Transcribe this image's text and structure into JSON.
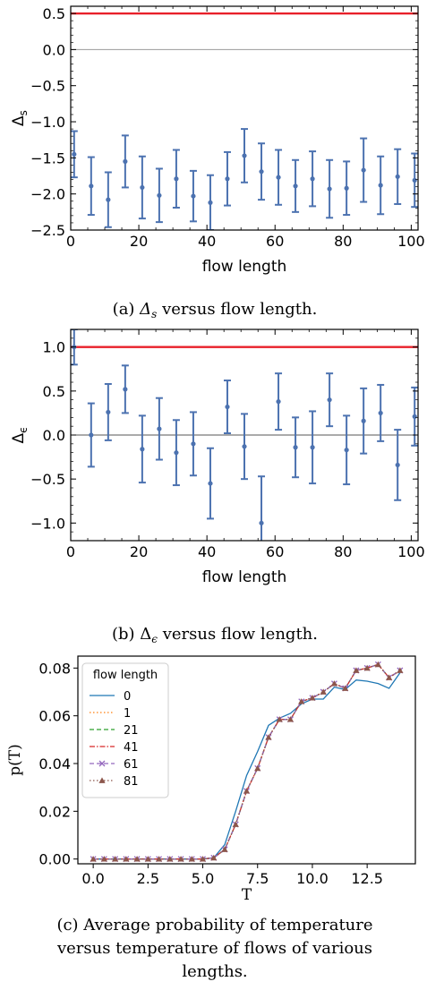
{
  "captions": {
    "a": "(a) Δ_s versus flow length.",
    "b": "(b) Δ_ε versus flow length.",
    "c_lines": [
      "(c) Average probability of temperature",
      "versus temperature of flows of various",
      "lengths."
    ]
  },
  "chart_data": [
    {
      "id": "a",
      "type": "scatter",
      "xlabel": "flow length",
      "ylabel": "Δ_s",
      "xlim": [
        0,
        102
      ],
      "ylim": [
        -2.5,
        0.6
      ],
      "xticks": [
        0,
        20,
        40,
        60,
        80,
        100
      ],
      "yticks": [
        0.5,
        0.0,
        -0.5,
        -1.0,
        -1.5,
        -2.0,
        -2.5
      ],
      "ytick_labels": [
        "0.5",
        "0.0",
        "−0.5",
        "−1.0",
        "−1.5",
        "−2.0",
        "−2.5"
      ],
      "reference_lines": [
        {
          "y": 0.5,
          "color": "#e8202a"
        },
        {
          "y": 0.0,
          "color": "#999999"
        }
      ],
      "series": [
        {
          "color": "#4c72b0",
          "x": [
            1,
            6,
            11,
            16,
            21,
            26,
            31,
            36,
            41,
            46,
            51,
            56,
            61,
            66,
            71,
            76,
            81,
            86,
            91,
            96,
            101
          ],
          "y": [
            -1.45,
            -1.89,
            -2.08,
            -1.55,
            -1.91,
            -2.02,
            -1.79,
            -2.03,
            -2.12,
            -1.79,
            -1.47,
            -1.69,
            -1.77,
            -1.89,
            -1.79,
            -1.93,
            -1.92,
            -1.67,
            -1.88,
            -1.76,
            -1.81
          ],
          "err": [
            0.32,
            0.4,
            0.38,
            0.36,
            0.43,
            0.37,
            0.4,
            0.35,
            0.38,
            0.37,
            0.37,
            0.39,
            0.38,
            0.36,
            0.38,
            0.4,
            0.37,
            0.44,
            0.4,
            0.38,
            0.37
          ]
        }
      ]
    },
    {
      "id": "b",
      "type": "scatter",
      "xlabel": "flow length",
      "ylabel": "Δ_ε",
      "xlim": [
        0,
        102
      ],
      "ylim": [
        -1.2,
        1.2
      ],
      "xticks": [
        0,
        20,
        40,
        60,
        80,
        100
      ],
      "yticks": [
        1.0,
        0.5,
        0.0,
        -0.5,
        -1.0
      ],
      "ytick_labels": [
        "1.0",
        "0.5",
        "0.0",
        "−0.5",
        "−1.0"
      ],
      "reference_lines": [
        {
          "y": 1.0,
          "color": "#e8202a"
        },
        {
          "y": 0.0,
          "color": "#555555"
        }
      ],
      "series": [
        {
          "color": "#4c72b0",
          "x": [
            1,
            6,
            11,
            16,
            21,
            26,
            31,
            36,
            41,
            46,
            51,
            56,
            61,
            66,
            71,
            76,
            81,
            86,
            91,
            96,
            101
          ],
          "y": [
            1.0,
            0.0,
            0.26,
            0.52,
            -0.16,
            0.07,
            -0.2,
            -0.1,
            -0.55,
            0.32,
            -0.13,
            -1.0,
            0.38,
            -0.14,
            -0.14,
            0.4,
            -0.17,
            0.16,
            0.25,
            -0.34,
            0.21
          ],
          "err": [
            0.2,
            0.36,
            0.32,
            0.27,
            0.38,
            0.35,
            0.37,
            0.36,
            0.4,
            0.3,
            0.37,
            0.53,
            0.32,
            0.34,
            0.41,
            0.3,
            0.39,
            0.37,
            0.32,
            0.4,
            0.33
          ]
        }
      ]
    },
    {
      "id": "c",
      "type": "line",
      "xlabel": "T",
      "ylabel": "p(T)",
      "xlim": [
        -0.7,
        14.7
      ],
      "ylim": [
        -0.002,
        0.085
      ],
      "xticks": [
        0.0,
        2.5,
        5.0,
        7.5,
        10.0,
        12.5
      ],
      "xtick_labels": [
        "0.0",
        "2.5",
        "5.0",
        "7.5",
        "10.0",
        "12.5"
      ],
      "yticks": [
        0.0,
        0.02,
        0.04,
        0.06,
        0.08
      ],
      "ytick_labels": [
        "0.00",
        "0.02",
        "0.04",
        "0.06",
        "0.08"
      ],
      "legend": {
        "title": "flow length",
        "position": "top-left"
      },
      "x": [
        0,
        0.5,
        1,
        1.5,
        2,
        2.5,
        3,
        3.5,
        4,
        4.5,
        5,
        5.5,
        6,
        6.5,
        7,
        7.5,
        8,
        8.5,
        9,
        9.5,
        10,
        10.5,
        11,
        11.5,
        12,
        12.5,
        13,
        13.5,
        14
      ],
      "series": [
        {
          "name": "0",
          "color": "#1f77b4",
          "dash": "solid",
          "marker": "none",
          "values": [
            0,
            0,
            0,
            0,
            0,
            0,
            0,
            0,
            0,
            0,
            0,
            0.0005,
            0.006,
            0.02,
            0.035,
            0.045,
            0.056,
            0.059,
            0.061,
            0.065,
            0.067,
            0.067,
            0.072,
            0.071,
            0.075,
            0.0745,
            0.0735,
            0.0715,
            0.078
          ]
        },
        {
          "name": "1",
          "color": "#ff7f0e",
          "dash": "dotted",
          "marker": "none",
          "values": [
            0,
            0,
            0,
            0,
            0,
            0,
            0,
            0,
            0,
            0,
            0,
            0.0005,
            0.004,
            0.0145,
            0.0285,
            0.038,
            0.051,
            0.0585,
            0.0585,
            0.066,
            0.0675,
            0.07,
            0.0735,
            0.0715,
            0.079,
            0.08,
            0.0815,
            0.076,
            0.079
          ]
        },
        {
          "name": "21",
          "color": "#2ca02c",
          "dash": "dashed",
          "marker": "none",
          "values": [
            0,
            0,
            0,
            0,
            0,
            0,
            0,
            0,
            0,
            0,
            0,
            0.0005,
            0.004,
            0.0145,
            0.0285,
            0.038,
            0.051,
            0.0585,
            0.0585,
            0.066,
            0.0675,
            0.07,
            0.0735,
            0.0715,
            0.079,
            0.08,
            0.0815,
            0.076,
            0.079
          ]
        },
        {
          "name": "41",
          "color": "#d62728",
          "dash": "dashdot",
          "marker": "none",
          "values": [
            0,
            0,
            0,
            0,
            0,
            0,
            0,
            0,
            0,
            0,
            0,
            0.0005,
            0.004,
            0.0145,
            0.0285,
            0.038,
            0.051,
            0.0585,
            0.0585,
            0.066,
            0.0675,
            0.07,
            0.0735,
            0.0715,
            0.079,
            0.08,
            0.0815,
            0.076,
            0.079
          ]
        },
        {
          "name": "61",
          "color": "#9467bd",
          "dash": "dashed",
          "marker": "x",
          "values": [
            0,
            0,
            0,
            0,
            0,
            0,
            0,
            0,
            0,
            0,
            0,
            0.0005,
            0.004,
            0.0145,
            0.0285,
            0.038,
            0.051,
            0.0585,
            0.0585,
            0.066,
            0.0675,
            0.07,
            0.0735,
            0.0715,
            0.079,
            0.08,
            0.0815,
            0.076,
            0.079
          ]
        },
        {
          "name": "81",
          "color": "#8c564b",
          "dash": "dotted",
          "marker": "triangle",
          "values": [
            0,
            0,
            0,
            0,
            0,
            0,
            0,
            0,
            0,
            0,
            0,
            0.0005,
            0.004,
            0.0145,
            0.0285,
            0.038,
            0.051,
            0.0585,
            0.0585,
            0.066,
            0.0675,
            0.07,
            0.0735,
            0.0715,
            0.079,
            0.08,
            0.0815,
            0.076,
            0.079
          ]
        }
      ]
    }
  ]
}
